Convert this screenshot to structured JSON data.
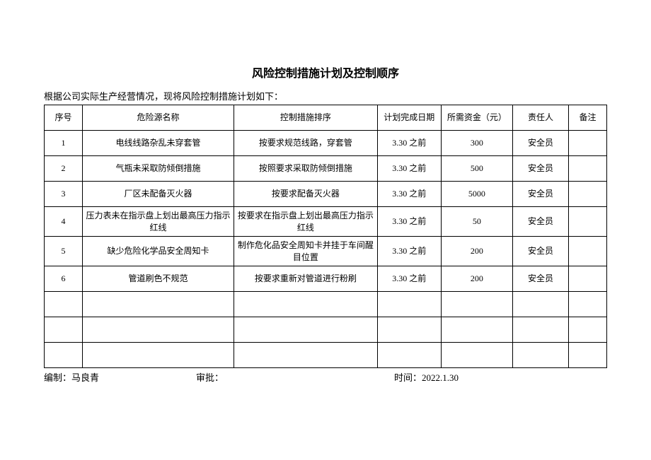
{
  "title": "风险控制措施计划及控制顺序",
  "intro": "根据公司实际生产经营情况，现将风险控制措施计划如下：",
  "columns": {
    "index": "序号",
    "hazard": "危险源名称",
    "measure": "控制措施排序",
    "date": "计划完成日期",
    "fund": "所需资金（元）",
    "person": "责任人",
    "note": "备注"
  },
  "rows": [
    {
      "index": "1",
      "hazard": "电线线路杂乱未穿套管",
      "measure": "按要求规范线路，穿套管",
      "date": "3.30 之前",
      "fund": "300",
      "person": "安全员",
      "note": ""
    },
    {
      "index": "2",
      "hazard": "气瓶未采取防倾倒措施",
      "measure": "按照要求采取防倾倒措施",
      "date": "3.30 之前",
      "fund": "500",
      "person": "安全员",
      "note": ""
    },
    {
      "index": "3",
      "hazard": "厂区未配备灭火器",
      "measure": "按要求配备灭火器",
      "date": "3.30 之前",
      "fund": "5000",
      "person": "安全员",
      "note": ""
    },
    {
      "index": "4",
      "hazard": "压力表未在指示盘上划出最高压力指示红线",
      "measure": "按要求在指示盘上划出最高压力指示红线",
      "date": "3.30 之前",
      "fund": "50",
      "person": "安全员",
      "note": ""
    },
    {
      "index": "5",
      "hazard": "缺少危险化学品安全周知卡",
      "measure": "制作危化品安全周知卡并挂于车间醒目位置",
      "date": "3.30 之前",
      "fund": "200",
      "person": "安全员",
      "note": ""
    },
    {
      "index": "6",
      "hazard": "管道刷色不规范",
      "measure": "按要求重新对管道进行粉刷",
      "date": "3.30 之前",
      "fund": "200",
      "person": "安全员",
      "note": ""
    }
  ],
  "footer": {
    "compiler_label": "编制：",
    "compiler_name": "马良青",
    "approver_label": "审批：",
    "approver_name": "",
    "time_label": "时间：",
    "time_value": "2022.1.30"
  },
  "style": {
    "text_color": "#000000",
    "border_color": "#000000",
    "background_color": "#ffffff",
    "title_fontsize": 16,
    "body_fontsize": 13,
    "cell_fontsize": 12
  }
}
